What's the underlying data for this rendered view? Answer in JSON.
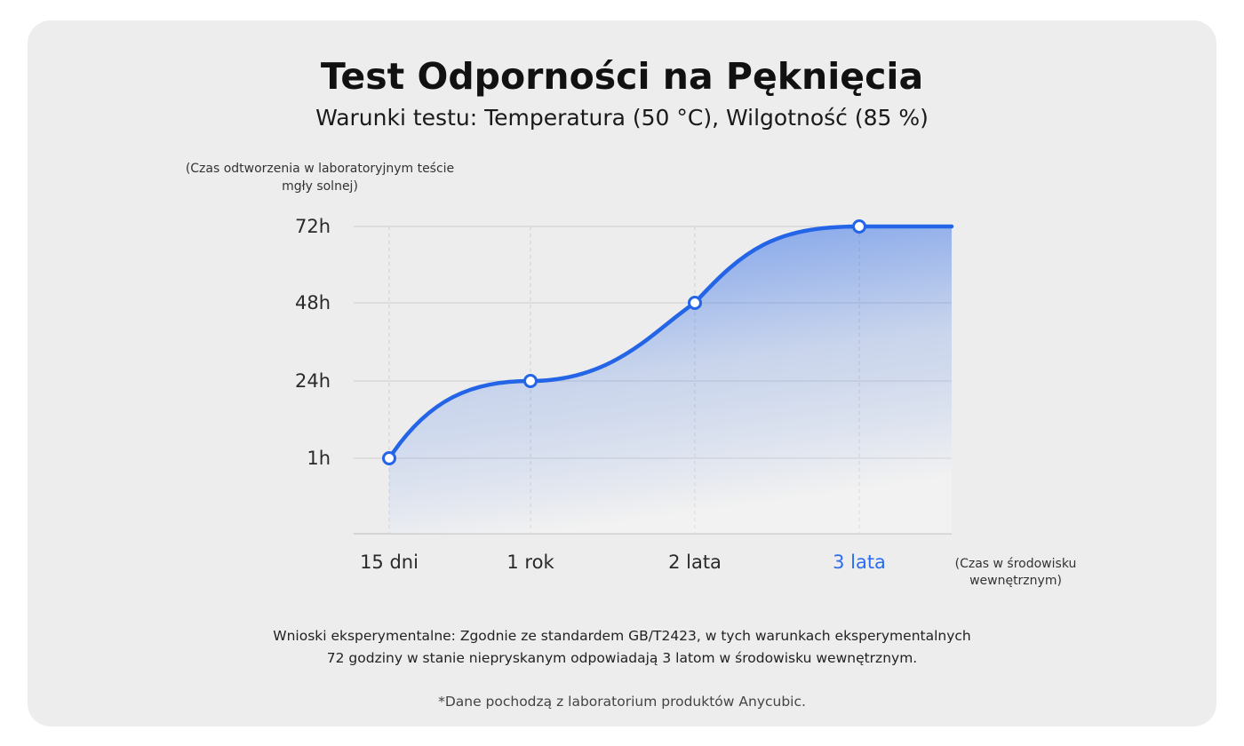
{
  "chart_data": {
    "type": "area",
    "title": "Test Odporności na Pęknięcia",
    "subtitle": "Warunki testu: Temperatura (50 °C), Wilgotność (85 %)",
    "ylabel": "(Czas odtworzenia w laboratoryjnym teście mgły solnej)",
    "xlabel": "(Czas w środowisku wewnętrznym)",
    "categories": [
      "15 dni",
      "1 rok",
      "2 lata",
      "3 lata"
    ],
    "highlight_category": "3 lata",
    "y_ticks": [
      "1h",
      "24h",
      "48h",
      "72h"
    ],
    "series": [
      {
        "values": [
          "1h",
          "24h",
          "48h",
          "72h"
        ]
      }
    ],
    "grid": true,
    "line_color": "#2465e8",
    "fill_color": "#2465e8",
    "highlight_color": "#2a6df0"
  },
  "conclusion": {
    "line1": "Wnioski eksperymentalne: Zgodnie ze standardem GB/T2423, w tych warunkach eksperymentalnych",
    "line2": "72 godziny w stanie niepryskanym odpowiadają 3 latom w środowisku wewnętrznym."
  },
  "source_note": "*Dane pochodzą z laboratorium produktów Anycubic."
}
